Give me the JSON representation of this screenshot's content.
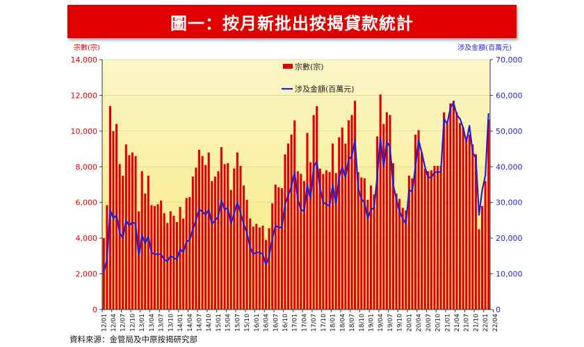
{
  "title": "圖一：按月新批出按揭貸款統計",
  "source": "資料來源：金管局及中原按揭研究部",
  "chart_data": {
    "type": "bar",
    "y_left_label": "宗數(宗)",
    "y_right_label": "涉及金額(百萬元)",
    "y_left_ticks": [
      "0",
      "2,000",
      "4,000",
      "6,000",
      "8,000",
      "10,000",
      "12,000",
      "14,000"
    ],
    "y_right_ticks": [
      "0",
      "10,000",
      "20,000",
      "30,000",
      "40,000",
      "50,000",
      "60,000",
      "70,000"
    ],
    "ylim_left": [
      0,
      14000
    ],
    "ylim_right": [
      0,
      70000
    ],
    "legend": [
      "宗數(宗)",
      "涉及金額(百萬元)"
    ],
    "legend_position": "top-center",
    "x_tick_labels": [
      "12/01",
      "12/04",
      "12/07",
      "12/10",
      "13/01",
      "13/04",
      "13/07",
      "13/10",
      "14/01",
      "14/04",
      "14/07",
      "14/10",
      "15/01",
      "15/04",
      "15/07",
      "15/10",
      "16/01",
      "16/04",
      "16/07",
      "16/10",
      "17/01",
      "17/04",
      "17/07",
      "17/10",
      "18/01",
      "18/04",
      "18/07",
      "18/10",
      "19/01",
      "19/04",
      "19/07",
      "19/10",
      "20/01",
      "20/04",
      "20/07",
      "20/10",
      "21/01",
      "21/04",
      "21/07",
      "21/10",
      "22/01",
      "22/04"
    ],
    "bar_color": "#e00000",
    "line_color": "#1f1fd6",
    "background_gradient": [
      "#fbf6c8",
      "#f7e97a"
    ],
    "counts": [
      4000,
      5850,
      11400,
      10000,
      10400,
      8150,
      7500,
      9250,
      8650,
      8800,
      8600,
      5500,
      7750,
      6500,
      7500,
      5850,
      5800,
      5900,
      6100,
      5400,
      4850,
      5500,
      5250,
      4900,
      5750,
      5100,
      6250,
      6300,
      7450,
      7950,
      8950,
      8600,
      8100,
      8800,
      7200,
      7450,
      7750,
      9100,
      8150,
      8200,
      6700,
      7900,
      8800,
      8050,
      6950,
      6150,
      5100,
      4650,
      4800,
      4600,
      4700,
      3900,
      4550,
      5950,
      7000,
      6850,
      6800,
      8700,
      9300,
      9800,
      10600,
      7750,
      7600,
      7200,
      9900,
      8250,
      10900,
      11400,
      7900,
      7600,
      7800,
      7700,
      9300,
      7650,
      9650,
      10200,
      9300,
      10600,
      10900,
      11700,
      7700,
      7400,
      7350,
      6150,
      6950,
      6450,
      9700,
      12050,
      10400,
      11050,
      10900,
      8200,
      6500,
      6200,
      5700,
      5550,
      7500,
      7350,
      9800,
      10050,
      8800,
      7900,
      7750,
      7800,
      8050,
      8050,
      8050,
      11050,
      10400,
      11550,
      11700,
      11050,
      10450,
      10200,
      9600,
      9800,
      9250,
      8700,
      4500,
      5800,
      7200,
      10650
    ],
    "amounts": [
      10500,
      14000,
      28000,
      25500,
      26500,
      21500,
      20000,
      25000,
      23500,
      24500,
      24000,
      15000,
      21000,
      18500,
      20500,
      16000,
      15500,
      15500,
      15500,
      14000,
      13500,
      15000,
      14500,
      14000,
      17000,
      16000,
      19000,
      19500,
      22500,
      25000,
      28000,
      27500,
      26500,
      28000,
      24000,
      25000,
      26000,
      30500,
      28000,
      28500,
      24000,
      27000,
      30000,
      27000,
      24000,
      21500,
      17500,
      15500,
      16000,
      16000,
      15500,
      12500,
      15000,
      20000,
      23500,
      23000,
      23000,
      29500,
      32000,
      34500,
      38500,
      31000,
      28000,
      27500,
      35000,
      31000,
      40000,
      41500,
      34000,
      30000,
      29500,
      29000,
      35000,
      29500,
      37000,
      40000,
      37000,
      42000,
      43000,
      47500,
      34000,
      31000,
      30000,
      25500,
      28000,
      28500,
      37500,
      48000,
      40000,
      47000,
      45500,
      35000,
      31000,
      27500,
      25500,
      24000,
      33500,
      33000,
      40000,
      47500,
      44000,
      40000,
      37000,
      37000,
      38500,
      38500,
      38500,
      53500,
      52000,
      56500,
      58000,
      54500,
      53500,
      51000,
      47000,
      51500,
      44000,
      42500,
      26500,
      33500,
      37500,
      55000
    ]
  }
}
